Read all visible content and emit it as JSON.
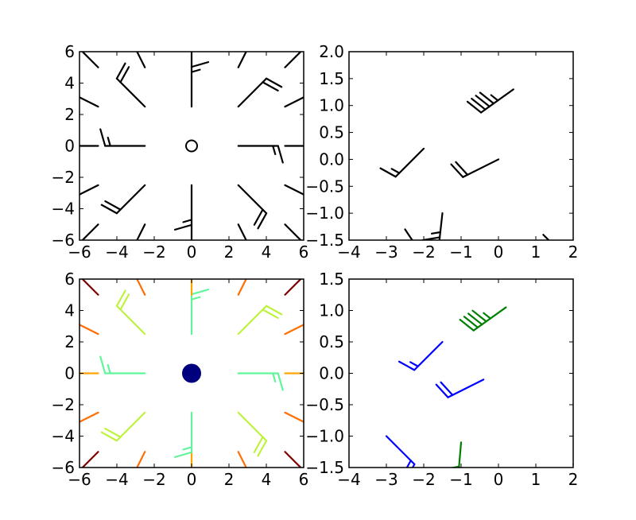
{
  "figure": {
    "background": "#ffffff"
  },
  "chart_data": [
    {
      "type": "barbs",
      "panel": "top-left",
      "title": "",
      "xlabel": "",
      "ylabel": "",
      "xlim": [
        -6,
        6
      ],
      "ylim": [
        -6,
        6
      ],
      "x_tick_labels": [
        "−6",
        "−4",
        "−2",
        "0",
        "2",
        "4",
        "6"
      ],
      "y_tick_labels": [
        "−6",
        "−4",
        "−2",
        "0",
        "2",
        "4",
        "6"
      ],
      "grid": false,
      "legend": "none",
      "color_mode": "uniform",
      "color": "#000000",
      "barbs": [
        {
          "x": -5,
          "y": -5,
          "u": 25,
          "v": 25
        },
        {
          "x": -5,
          "y": -2.5,
          "u": 25,
          "v": 12.5
        },
        {
          "x": -5,
          "y": 0,
          "u": 25,
          "v": 0
        },
        {
          "x": -5,
          "y": 2.5,
          "u": 25,
          "v": -12.5
        },
        {
          "x": -5,
          "y": 5,
          "u": 25,
          "v": -25
        },
        {
          "x": -2.5,
          "y": -5,
          "u": 12.5,
          "v": 25
        },
        {
          "x": -2.5,
          "y": -2.5,
          "u": 12.5,
          "v": 12.5
        },
        {
          "x": -2.5,
          "y": 0,
          "u": 12.5,
          "v": 0
        },
        {
          "x": -2.5,
          "y": 2.5,
          "u": 12.5,
          "v": -12.5
        },
        {
          "x": -2.5,
          "y": 5,
          "u": 12.5,
          "v": -25
        },
        {
          "x": 0,
          "y": -5,
          "u": 0,
          "v": 25
        },
        {
          "x": 0,
          "y": -2.5,
          "u": 0,
          "v": 12.5
        },
        {
          "x": 0,
          "y": 0,
          "u": 0,
          "v": 0
        },
        {
          "x": 0,
          "y": 2.5,
          "u": 0,
          "v": -12.5
        },
        {
          "x": 0,
          "y": 5,
          "u": 0,
          "v": -25
        },
        {
          "x": 2.5,
          "y": -5,
          "u": -12.5,
          "v": 25
        },
        {
          "x": 2.5,
          "y": -2.5,
          "u": -12.5,
          "v": 12.5
        },
        {
          "x": 2.5,
          "y": 0,
          "u": -12.5,
          "v": 0
        },
        {
          "x": 2.5,
          "y": 2.5,
          "u": -12.5,
          "v": -12.5
        },
        {
          "x": 2.5,
          "y": 5,
          "u": -12.5,
          "v": -25
        },
        {
          "x": 5,
          "y": -5,
          "u": -25,
          "v": 25
        },
        {
          "x": 5,
          "y": -2.5,
          "u": -25,
          "v": 12.5
        },
        {
          "x": 5,
          "y": 0,
          "u": -25,
          "v": 0
        },
        {
          "x": 5,
          "y": 2.5,
          "u": -25,
          "v": -12.5
        },
        {
          "x": 5,
          "y": 5,
          "u": -25,
          "v": -25
        }
      ]
    },
    {
      "type": "barbs",
      "panel": "top-right",
      "title": "",
      "xlabel": "",
      "ylabel": "",
      "xlim": [
        -4,
        2
      ],
      "ylim": [
        -1.5,
        2.0
      ],
      "x_tick_labels": [
        "−4",
        "−3",
        "−2",
        "−1",
        "0",
        "1",
        "2"
      ],
      "y_tick_labels": [
        "−1.5",
        "−1.0",
        "−0.5",
        "0.0",
        "0.5",
        "1.0",
        "1.5",
        "2.0"
      ],
      "grid": false,
      "legend": "none",
      "color_mode": "uniform",
      "color": "#000000",
      "barbs": [
        {
          "x": -2.5,
          "y": -1.3,
          "u": -10,
          "v": 15
        },
        {
          "x": -2.0,
          "y": 0.2,
          "u": 10,
          "v": 10
        },
        {
          "x": -1.5,
          "y": -1.0,
          "u": 5,
          "v": 45
        },
        {
          "x": 0.0,
          "y": 0.0,
          "u": 20,
          "v": 10
        },
        {
          "x": 1.2,
          "y": -1.4,
          "u": -25,
          "v": 25
        },
        {
          "x": 0.4,
          "y": 1.3,
          "u": 35,
          "v": 25
        }
      ]
    },
    {
      "type": "barbs",
      "panel": "bottom-left",
      "title": "",
      "xlabel": "",
      "ylabel": "",
      "xlim": [
        -6,
        6
      ],
      "ylim": [
        -6,
        6
      ],
      "x_tick_labels": [
        "−6",
        "−4",
        "−2",
        "0",
        "2",
        "4",
        "6"
      ],
      "y_tick_labels": [
        "−6",
        "−4",
        "−2",
        "0",
        "2",
        "4",
        "6"
      ],
      "grid": false,
      "legend": "none",
      "color_mode": "colormap by magnitude",
      "colormap": [
        "#00007f",
        "#00d4ff",
        "#7dff7a",
        "#ffe600",
        "#ff6800",
        "#7f0000"
      ],
      "center_marker_color": "#00007f",
      "barbs": [
        {
          "x": -5,
          "y": -5,
          "u": 25,
          "v": 25
        },
        {
          "x": -5,
          "y": -2.5,
          "u": 25,
          "v": 12.5
        },
        {
          "x": -5,
          "y": 0,
          "u": 25,
          "v": 0
        },
        {
          "x": -5,
          "y": 2.5,
          "u": 25,
          "v": -12.5
        },
        {
          "x": -5,
          "y": 5,
          "u": 25,
          "v": -25
        },
        {
          "x": -2.5,
          "y": -5,
          "u": 12.5,
          "v": 25
        },
        {
          "x": -2.5,
          "y": -2.5,
          "u": 12.5,
          "v": 12.5
        },
        {
          "x": -2.5,
          "y": 0,
          "u": 12.5,
          "v": 0
        },
        {
          "x": -2.5,
          "y": 2.5,
          "u": 12.5,
          "v": -12.5
        },
        {
          "x": -2.5,
          "y": 5,
          "u": 12.5,
          "v": -25
        },
        {
          "x": 0,
          "y": -5,
          "u": 0,
          "v": 25
        },
        {
          "x": 0,
          "y": -2.5,
          "u": 0,
          "v": 12.5
        },
        {
          "x": 0,
          "y": 0,
          "u": 0,
          "v": 0
        },
        {
          "x": 0,
          "y": 2.5,
          "u": 0,
          "v": -12.5
        },
        {
          "x": 0,
          "y": 5,
          "u": 0,
          "v": -25
        },
        {
          "x": 2.5,
          "y": -5,
          "u": -12.5,
          "v": 25
        },
        {
          "x": 2.5,
          "y": -2.5,
          "u": -12.5,
          "v": 12.5
        },
        {
          "x": 2.5,
          "y": 0,
          "u": -12.5,
          "v": 0
        },
        {
          "x": 2.5,
          "y": 2.5,
          "u": -12.5,
          "v": -12.5
        },
        {
          "x": 2.5,
          "y": 5,
          "u": -12.5,
          "v": -25
        },
        {
          "x": 5,
          "y": -5,
          "u": -25,
          "v": 25
        },
        {
          "x": 5,
          "y": -2.5,
          "u": -25,
          "v": 12.5
        },
        {
          "x": 5,
          "y": 0,
          "u": -25,
          "v": 0
        },
        {
          "x": 5,
          "y": 2.5,
          "u": -25,
          "v": -12.5
        },
        {
          "x": 5,
          "y": 5,
          "u": -25,
          "v": -25
        }
      ]
    },
    {
      "type": "barbs",
      "panel": "bottom-right",
      "title": "",
      "xlabel": "",
      "ylabel": "",
      "xlim": [
        -4,
        2
      ],
      "ylim": [
        -1.5,
        1.5
      ],
      "x_tick_labels": [
        "−4",
        "−3",
        "−2",
        "−1",
        "0",
        "1",
        "2"
      ],
      "y_tick_labels": [
        "−1.5",
        "−1.0",
        "−0.5",
        "0.0",
        "0.5",
        "1.0",
        "1.5"
      ],
      "grid": false,
      "legend": "none",
      "color_mode": "per-barb",
      "barbs": [
        {
          "x": -3.0,
          "y": -1.0,
          "u": -10,
          "v": 10,
          "color": "#0000ff"
        },
        {
          "x": -1.5,
          "y": 0.5,
          "u": 10,
          "v": 10,
          "color": "#0000ff"
        },
        {
          "x": -0.4,
          "y": -0.1,
          "u": 20,
          "v": 10,
          "color": "#0000ff"
        },
        {
          "x": -1.0,
          "y": -1.1,
          "u": 3,
          "v": 35,
          "color": "#008000"
        },
        {
          "x": 2.0,
          "y": -1.45,
          "u": -25,
          "v": 25,
          "color": "#008000"
        },
        {
          "x": 0.2,
          "y": 1.05,
          "u": 35,
          "v": 25,
          "color": "#008000",
          "flag_fill": "#ff0000"
        }
      ]
    }
  ]
}
